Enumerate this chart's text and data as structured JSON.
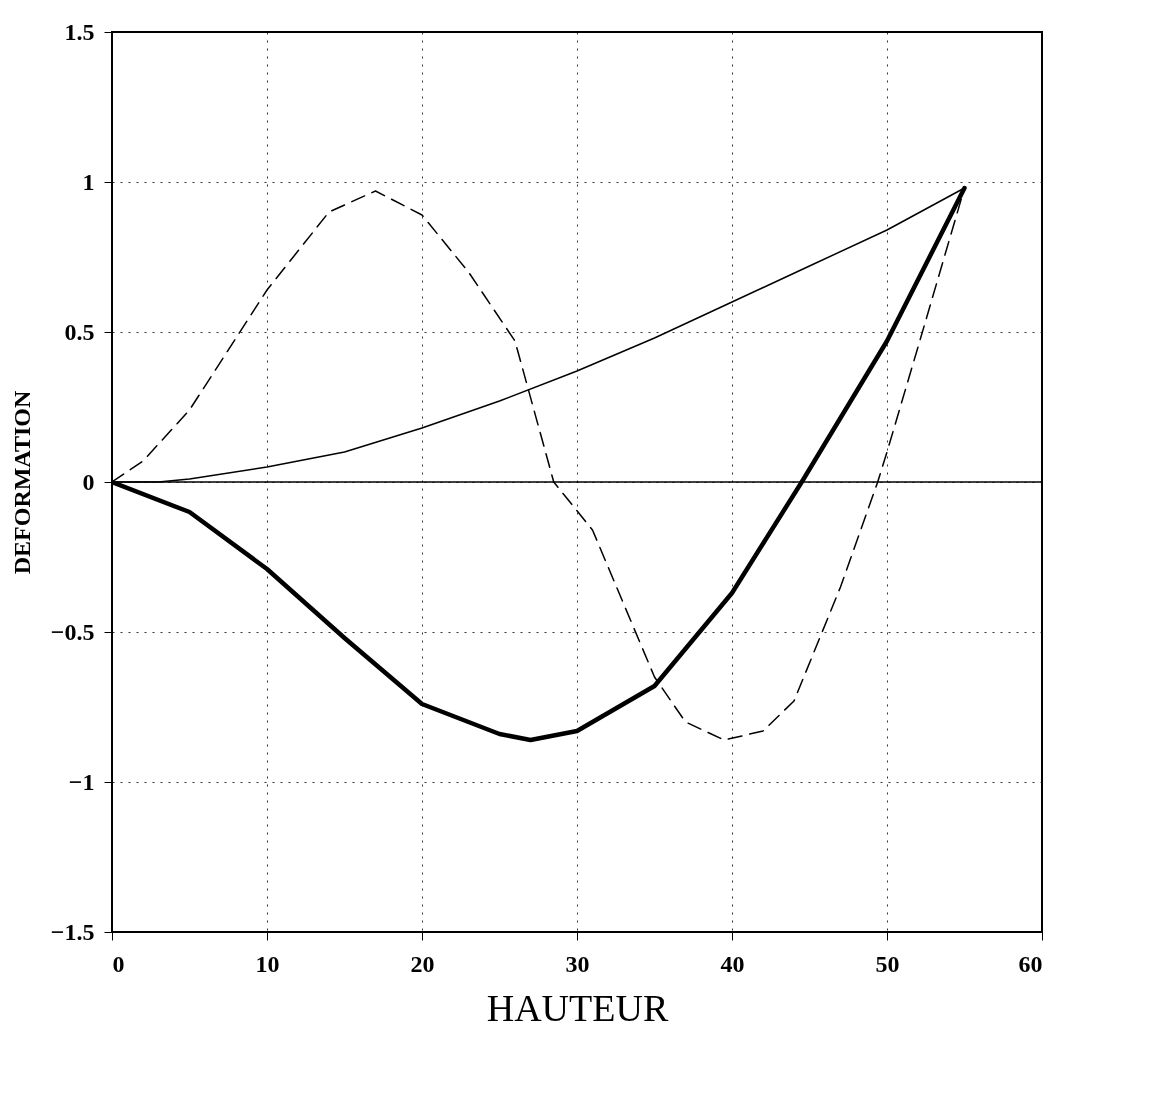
{
  "chart_data": {
    "type": "line",
    "xlabel": "HAUTEUR",
    "ylabel": "DEFORMATION",
    "xlim": [
      0,
      60
    ],
    "xticks": [
      0,
      10,
      20,
      30,
      40,
      50,
      60
    ],
    "ylim": [
      -1.5,
      1.5
    ],
    "yticks": [
      -1.5,
      -1,
      -0.5,
      0,
      0.5,
      1,
      1.5
    ],
    "grid": true,
    "marker": "none",
    "ref_lines": [
      {
        "axis": "y",
        "value": 0,
        "color": "#000000",
        "line_style": "solid"
      }
    ],
    "series": [
      {
        "color": "#000000",
        "line_style": "solid",
        "x": [
          0,
          3,
          5,
          10,
          15,
          20,
          25,
          30,
          35,
          40,
          45,
          50,
          55
        ],
        "values": [
          0,
          0,
          0.01,
          0.05,
          0.1,
          0.18,
          0.27,
          0.37,
          0.48,
          0.6,
          0.72,
          0.84,
          0.98
        ]
      },
      {
        "color": "#000000",
        "line_style": "solid",
        "x": [
          0,
          5,
          10,
          15,
          20,
          25,
          27,
          30,
          35,
          40,
          44.5,
          50,
          55
        ],
        "values": [
          0,
          -0.1,
          -0.29,
          -0.52,
          -0.74,
          -0.84,
          -0.86,
          -0.83,
          -0.68,
          -0.37,
          0,
          0.47,
          0.98
        ]
      },
      {
        "color": "#000000",
        "line_style": "dashed",
        "x": [
          0,
          2,
          5,
          10,
          14,
          17,
          20,
          23,
          26,
          28.5,
          31,
          35,
          37,
          39.5,
          42,
          44,
          47,
          49.4,
          50,
          52,
          55
        ],
        "values": [
          0,
          0.07,
          0.24,
          0.64,
          0.9,
          0.97,
          0.89,
          0.7,
          0.47,
          0,
          -0.16,
          -0.65,
          -0.8,
          -0.86,
          -0.83,
          -0.73,
          -0.35,
          0,
          0.1,
          0.45,
          0.98
        ]
      }
    ]
  }
}
